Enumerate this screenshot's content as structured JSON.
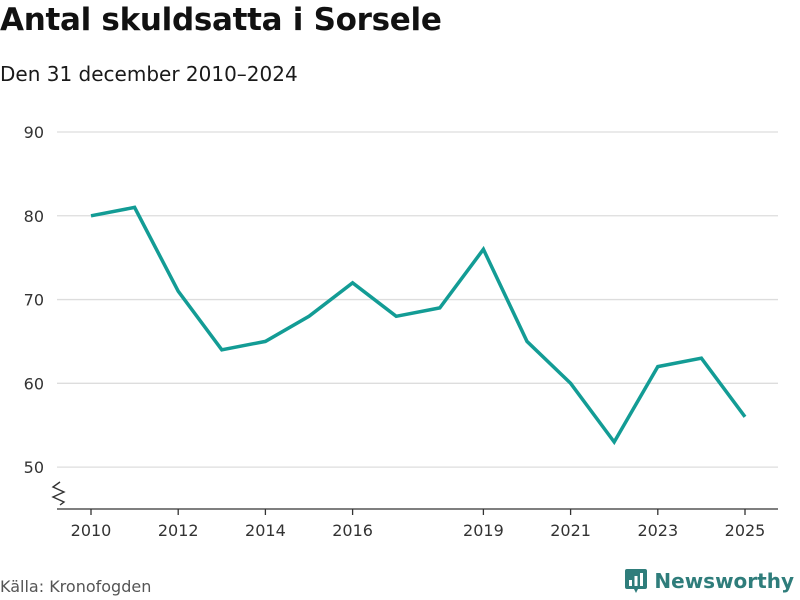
{
  "header": {
    "title": "Antal skuldsatta i Sorsele",
    "subtitle": "Den 31 december 2010–2024"
  },
  "footer": {
    "source": "Källa: Kronofogden",
    "brand": "Newsworthy",
    "brand_icon": "bar-chart-icon"
  },
  "chart_data": {
    "type": "line",
    "x": [
      2010,
      2011,
      2012,
      2013,
      2014,
      2015,
      2016,
      2017,
      2018,
      2019,
      2020,
      2021,
      2022,
      2023,
      2024,
      2025
    ],
    "series": [
      {
        "values": [
          80,
          81,
          71,
          64,
          65,
          68,
          72,
          68,
          69,
          76,
          65,
          60,
          53,
          62,
          63,
          56
        ]
      }
    ],
    "x_ticks": [
      2010,
      2012,
      2014,
      2016,
      2019,
      2021,
      2023,
      2025
    ],
    "y_ticks": [
      50,
      60,
      70,
      80,
      90
    ],
    "ylim": [
      45,
      90
    ],
    "xlim": [
      2010,
      2025
    ],
    "y_axis_break": true,
    "grid": "horizontal",
    "colors": {
      "line": "#139c95",
      "grid": "#dddddd",
      "axis": "#333333"
    }
  }
}
